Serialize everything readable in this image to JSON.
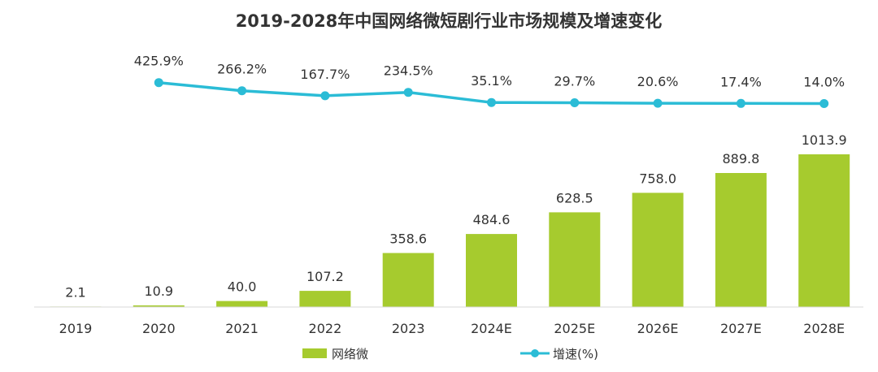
{
  "colors": {
    "bar": "#a6cb2e",
    "line": "#2bbcd6",
    "axis": "#d9d9d9",
    "text": "#333333"
  },
  "chart_data": {
    "type": "bar",
    "title": "2019-2028年中国网络微短剧行业市场规模及增速变化",
    "xlabel": "",
    "ylabel": "",
    "categories": [
      "2019",
      "2020",
      "2021",
      "2022",
      "2023",
      "2024E",
      "2025E",
      "2026E",
      "2027E",
      "2028E"
    ],
    "series": [
      {
        "name": "网络微",
        "type": "bar",
        "values": [
          2.1,
          10.9,
          40.0,
          107.2,
          358.6,
          484.6,
          628.5,
          758.0,
          889.8,
          1013.9
        ],
        "labels": [
          "2.1",
          "10.9",
          "40.0",
          "107.2",
          "358.6",
          "484.6",
          "628.5",
          "758.0",
          "889.8",
          "1013.9"
        ]
      },
      {
        "name": "增速(%)",
        "type": "line",
        "values": [
          null,
          425.9,
          266.2,
          167.7,
          234.5,
          35.1,
          29.7,
          20.6,
          17.4,
          14.0
        ],
        "labels": [
          "",
          "425.9%",
          "266.2%",
          "167.7%",
          "234.5%",
          "35.1%",
          "29.7%",
          "20.6%",
          "17.4%",
          "14.0%"
        ]
      }
    ],
    "ylim": [
      0,
      1100
    ],
    "grid": false,
    "legend": "bottom-center"
  }
}
